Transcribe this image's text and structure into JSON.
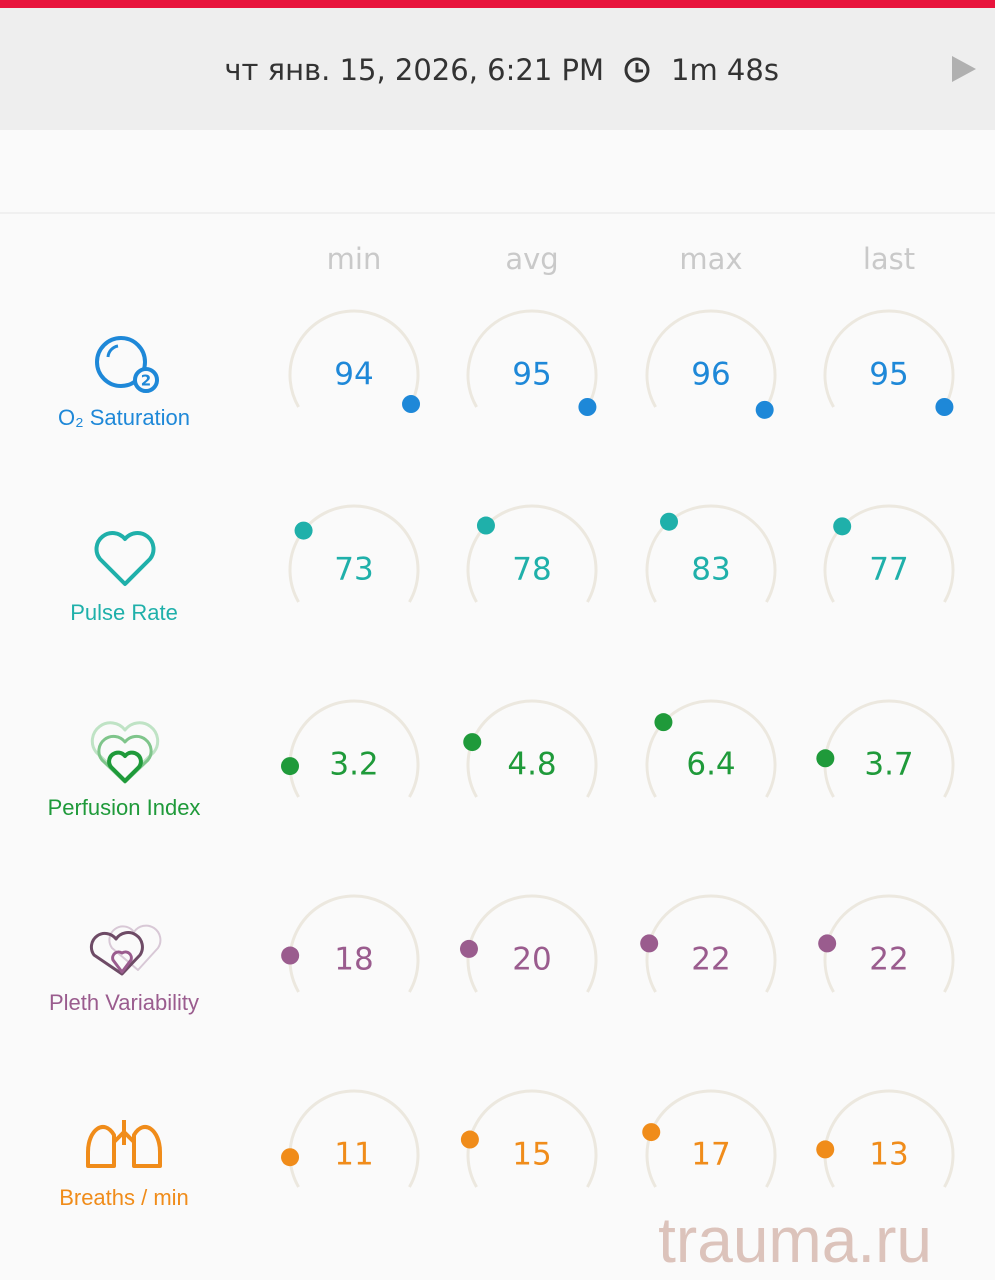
{
  "header": {
    "datetime": "чт янв. 15, 2026, 6:21 PM",
    "duration": "1m 48s"
  },
  "columns": [
    "min",
    "avg",
    "max",
    "last"
  ],
  "metrics": [
    {
      "label": "O₂ Saturation",
      "color": "#1e88d8",
      "values": [
        94,
        95,
        96,
        95
      ]
    },
    {
      "label": "Pulse Rate",
      "color": "#1fb0aa",
      "values": [
        73,
        78,
        83,
        77
      ]
    },
    {
      "label": "Perfusion Index",
      "color": "#1f9a3a",
      "values": [
        3.2,
        4.8,
        6.4,
        3.7
      ]
    },
    {
      "label": "Pleth Variability",
      "color": "#9a5c8e",
      "values": [
        18,
        20,
        22,
        22
      ]
    },
    {
      "label": "Breaths / min",
      "color": "#f08c1a",
      "values": [
        11,
        15,
        17,
        13
      ]
    }
  ],
  "watermark": "trauma.ru"
}
